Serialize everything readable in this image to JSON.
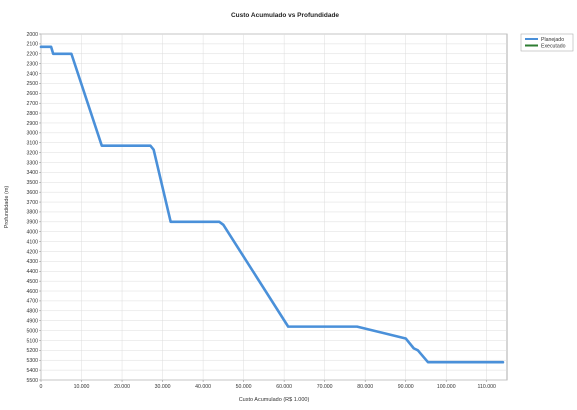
{
  "chart_data": {
    "type": "line",
    "title": "Custo Acumulado vs Profundidade",
    "xlabel": "Custo Acumulado (R$ 1.000)",
    "ylabel": "Profundidade (m)",
    "xlim": [
      0,
      115000
    ],
    "ylim": [
      2000,
      5500
    ],
    "y_inverted": true,
    "grid": true,
    "legend_position": "top-right",
    "x_ticks": [
      {
        "value": 0,
        "label": "0"
      },
      {
        "value": 10000,
        "label": "10.000"
      },
      {
        "value": 20000,
        "label": "20.000"
      },
      {
        "value": 30000,
        "label": "30.000"
      },
      {
        "value": 40000,
        "label": "40.000"
      },
      {
        "value": 50000,
        "label": "50.000"
      },
      {
        "value": 60000,
        "label": "60.000"
      },
      {
        "value": 70000,
        "label": "70.000"
      },
      {
        "value": 80000,
        "label": "80.000"
      },
      {
        "value": 90000,
        "label": "90.000"
      },
      {
        "value": 100000,
        "label": "100.000"
      },
      {
        "value": 110000,
        "label": "110.000"
      }
    ],
    "y_ticks": [
      2000,
      2100,
      2200,
      2300,
      2400,
      2500,
      2600,
      2700,
      2800,
      2900,
      3000,
      3100,
      3200,
      3300,
      3400,
      3500,
      3600,
      3700,
      3800,
      3900,
      4000,
      4100,
      4200,
      4300,
      4400,
      4500,
      4600,
      4700,
      4800,
      4900,
      5000,
      5100,
      5200,
      5300,
      5400,
      5500
    ],
    "series": [
      {
        "name": "Planejado",
        "color": "#4a90d9",
        "points": [
          [
            0,
            2130
          ],
          [
            2500,
            2130
          ],
          [
            3000,
            2200
          ],
          [
            7500,
            2200
          ],
          [
            15000,
            3130
          ],
          [
            27000,
            3130
          ],
          [
            27800,
            3170
          ],
          [
            32000,
            3900
          ],
          [
            44000,
            3900
          ],
          [
            45000,
            3930
          ],
          [
            61000,
            4960
          ],
          [
            78000,
            4960
          ],
          [
            90000,
            5080
          ],
          [
            92000,
            5180
          ],
          [
            93000,
            5200
          ],
          [
            95500,
            5320
          ],
          [
            114000,
            5320
          ]
        ]
      },
      {
        "name": "Executado",
        "color": "#2e7d32",
        "points": []
      }
    ]
  }
}
